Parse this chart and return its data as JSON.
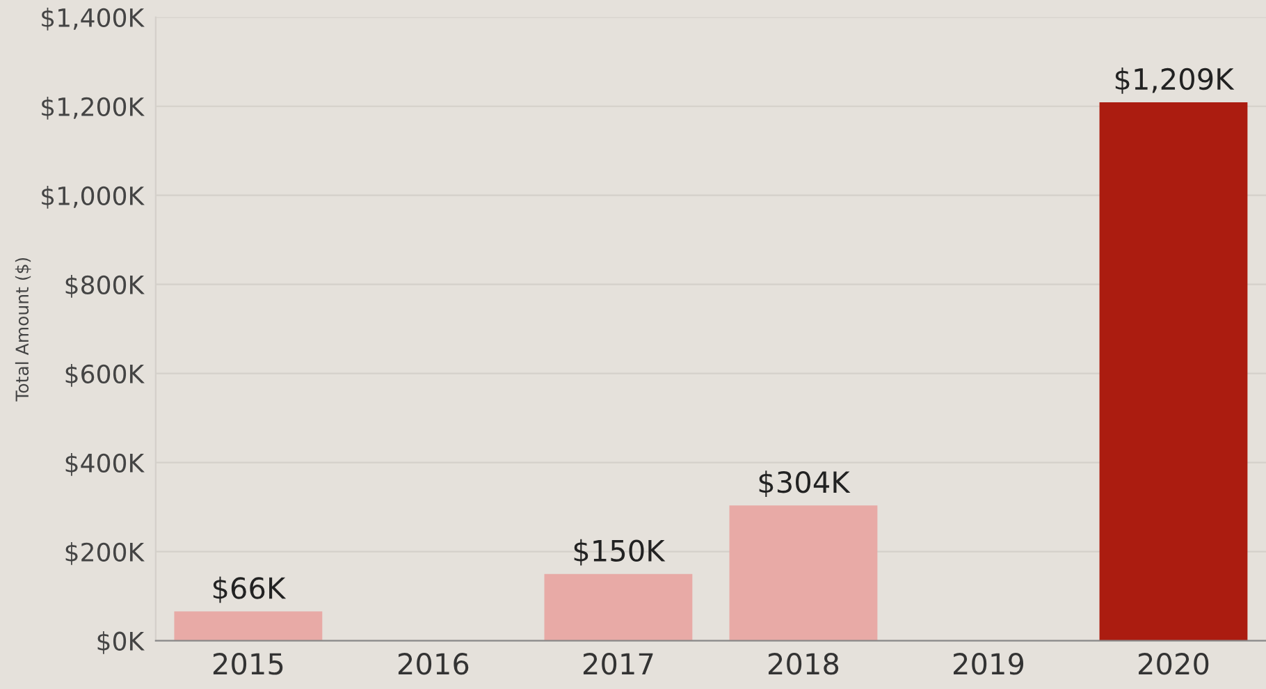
{
  "chart_data": {
    "type": "bar",
    "ylabel": "Total Amount ($)",
    "categories": [
      "2015",
      "2016",
      "2017",
      "2018",
      "2019",
      "2020"
    ],
    "values": [
      66,
      null,
      150,
      304,
      null,
      1209
    ],
    "colors": [
      "#e8aaa6",
      "#e8aaa6",
      "#e8aaa6",
      "#e8aaa6",
      "#e8aaa6",
      "#ab1c10"
    ],
    "value_labels": [
      "$66K",
      null,
      "$150K",
      "$304K",
      null,
      "$1,209K"
    ],
    "ylim": [
      0,
      1400
    ],
    "yticks": [
      {
        "value": 0,
        "label": "$0K"
      },
      {
        "value": 200,
        "label": "$200K"
      },
      {
        "value": 400,
        "label": "$400K"
      },
      {
        "value": 600,
        "label": "$600K"
      },
      {
        "value": 800,
        "label": "$800K"
      },
      {
        "value": 1000,
        "label": "$1,000K"
      },
      {
        "value": 1200,
        "label": "$1,200K"
      },
      {
        "value": 1400,
        "label": "$1,400K"
      }
    ],
    "grid": "y"
  }
}
